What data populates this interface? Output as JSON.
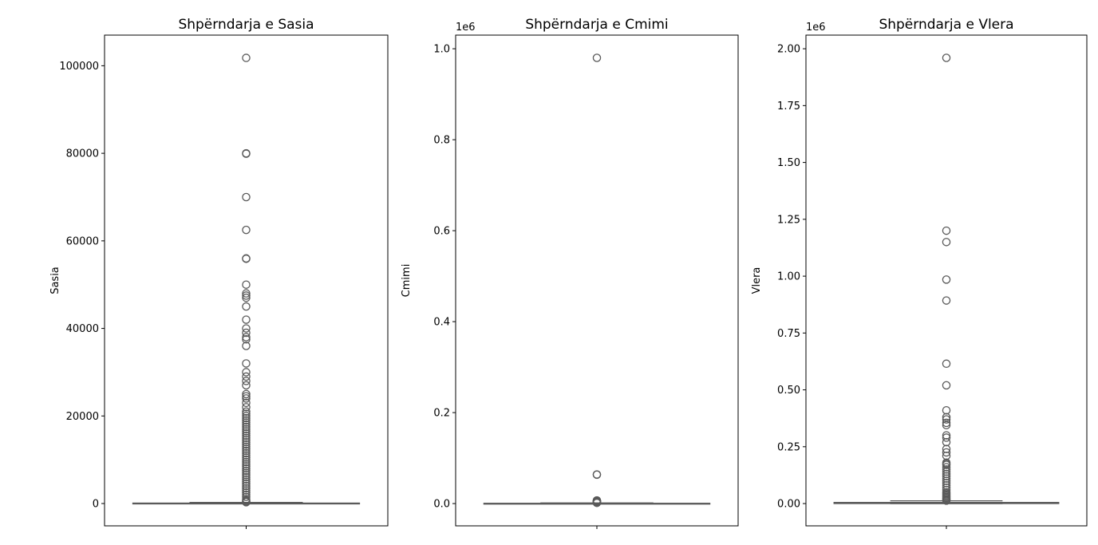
{
  "figure": {
    "background": "#ffffff",
    "box_color": "#5a5a5a",
    "flier_edge_color": "#5a5a5a"
  },
  "chart_data": [
    {
      "type": "box",
      "title": "Shpërndarja e Sasia",
      "ylabel": "Sasia",
      "offset_text": "",
      "ylim": [
        -5100,
        107000
      ],
      "yticks": [
        0,
        20000,
        40000,
        60000,
        80000,
        100000
      ],
      "ytick_labels": [
        "0",
        "20000",
        "40000",
        "60000",
        "80000",
        "100000"
      ],
      "box": {
        "q1": 3,
        "median": 20,
        "q3": 100,
        "whisker_low": 0,
        "whisker_high": 250
      },
      "outliers": [
        101800,
        80000,
        79900,
        70000,
        62500,
        56000,
        55900,
        50000,
        48000,
        47500,
        47000,
        45000,
        42000,
        40000,
        39000,
        38000,
        37500,
        36000,
        32000,
        30000,
        29000,
        28000,
        27000,
        25000,
        24500,
        24000,
        23000,
        22000,
        21000,
        20500,
        20000,
        19500,
        19000,
        18500,
        18000,
        17500,
        17000,
        16500,
        16000,
        15500,
        15000,
        14500,
        14000,
        13500,
        13000,
        12500,
        12000,
        11500,
        11000,
        10500,
        10000,
        9500,
        9000,
        8500,
        8000,
        7500,
        7000,
        6500,
        6000,
        5500,
        5000,
        4500,
        4000,
        3500,
        3000,
        2500,
        2000,
        1500,
        1000,
        700,
        500,
        400,
        300
      ]
    },
    {
      "type": "box",
      "title": "Shpërndarja e Cmimi",
      "ylabel": "Cmimi",
      "offset_text": "1e6",
      "ylim": [
        -49000,
        1030000
      ],
      "yticks": [
        0,
        200000,
        400000,
        600000,
        800000,
        1000000
      ],
      "ytick_labels": [
        "0.0",
        "0.2",
        "0.4",
        "0.6",
        "0.8",
        "1.0"
      ],
      "box": {
        "q1": 30,
        "median": 150,
        "q3": 600,
        "whisker_low": 0,
        "whisker_high": 1400
      },
      "outliers": [
        980000,
        64000,
        63500,
        7000,
        6500,
        6000,
        5500,
        5000,
        4500,
        4000,
        3500,
        3000,
        2500,
        2000,
        1800,
        1600
      ]
    },
    {
      "type": "box",
      "title": "Shpërndarja e Vlera",
      "ylabel": "Vlera",
      "offset_text": "1e6",
      "ylim": [
        -98000,
        2060000
      ],
      "yticks": [
        0,
        250000,
        500000,
        750000,
        1000000,
        1250000,
        1500000,
        1750000,
        2000000
      ],
      "ytick_labels": [
        "0.00",
        "0.25",
        "0.50",
        "0.75",
        "1.00",
        "1.25",
        "1.50",
        "1.75",
        "2.00"
      ],
      "box": {
        "q1": 100,
        "median": 1000,
        "q3": 5000,
        "whisker_low": 0,
        "whisker_high": 12000
      },
      "outliers": [
        1960000,
        1200000,
        1150000,
        985000,
        893000,
        615000,
        520000,
        410000,
        380000,
        370000,
        355000,
        345000,
        300000,
        290000,
        270000,
        240000,
        225000,
        210000,
        180000,
        175000,
        170000,
        160000,
        150000,
        140000,
        130000,
        120000,
        110000,
        100000,
        90000,
        80000,
        70000,
        60000,
        50000,
        45000,
        40000,
        35000,
        30000,
        25000,
        20000,
        16000,
        13000
      ]
    }
  ]
}
